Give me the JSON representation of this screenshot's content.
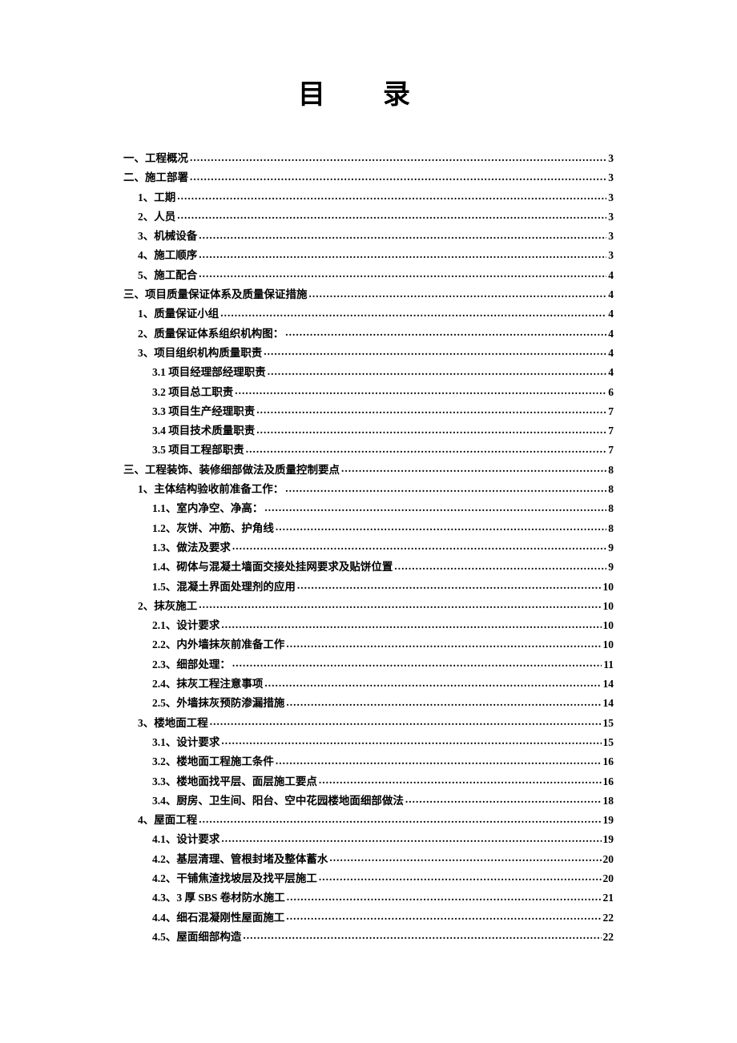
{
  "title": "目录",
  "title_fontsize": 34,
  "body_fontsize": 13.5,
  "text_color": "#000000",
  "background_color": "#ffffff",
  "entries": [
    {
      "indent": 0,
      "label": "一、工程概况",
      "page": "3"
    },
    {
      "indent": 0,
      "label": "二、施工部署",
      "page": "3"
    },
    {
      "indent": 1,
      "label": "1、工期",
      "page": "3"
    },
    {
      "indent": 1,
      "label": "2、人员",
      "page": "3"
    },
    {
      "indent": 1,
      "label": "3、机械设备",
      "page": "3"
    },
    {
      "indent": 1,
      "label": "4、施工顺序",
      "page": "3"
    },
    {
      "indent": 1,
      "label": "5、施工配合",
      "page": "4"
    },
    {
      "indent": 0,
      "label": "三、项目质量保证体系及质量保证措施",
      "page": "4"
    },
    {
      "indent": 1,
      "label": "1、质量保证小组",
      "page": "4"
    },
    {
      "indent": 1,
      "label": "2、质量保证体系组织机构图：",
      "page": "4"
    },
    {
      "indent": 1,
      "label": "3、项目组织机构质量职责",
      "page": "4"
    },
    {
      "indent": 2,
      "label": "3.1 项目经理部经理职责",
      "page": "4"
    },
    {
      "indent": 2,
      "label": "3.2 项目总工职责",
      "page": "6"
    },
    {
      "indent": 2,
      "label": "3.3 项目生产经理职责",
      "page": "7"
    },
    {
      "indent": 2,
      "label": "3.4 项目技术质量职责",
      "page": "7"
    },
    {
      "indent": 2,
      "label": "3.5 项目工程部职责",
      "page": "7"
    },
    {
      "indent": 0,
      "label": "三、工程装饰、装修细部做法及质量控制要点",
      "page": "8"
    },
    {
      "indent": 1,
      "label": "1、主体结构验收前准备工作：",
      "page": "8"
    },
    {
      "indent": 2,
      "label": "1.1、室内净空、净高：",
      "page": "8"
    },
    {
      "indent": 2,
      "label": "1.2、灰饼、冲筋、护角线",
      "page": "8"
    },
    {
      "indent": 2,
      "label": "1.3、做法及要求",
      "page": "9"
    },
    {
      "indent": 2,
      "label": "1.4、砌体与混凝土墙面交接处挂网要求及贴饼位置",
      "page": "9"
    },
    {
      "indent": 2,
      "label": "1.5、混凝土界面处理剂的应用",
      "page": "10"
    },
    {
      "indent": 1,
      "label": "2、抹灰施工",
      "page": "10"
    },
    {
      "indent": 2,
      "label": "2.1、设计要求",
      "page": "10"
    },
    {
      "indent": 2,
      "label": "2.2、内外墙抹灰前准备工作",
      "page": "10"
    },
    {
      "indent": 2,
      "label": "2.3、细部处理：",
      "page": "11"
    },
    {
      "indent": 2,
      "label": "2.4、抹灰工程注意事项",
      "page": "14"
    },
    {
      "indent": 2,
      "label": "2.5、外墙抹灰预防渗漏措施",
      "page": "14"
    },
    {
      "indent": 1,
      "label": "3、楼地面工程",
      "page": "15"
    },
    {
      "indent": 2,
      "label": "3.1、设计要求",
      "page": "15"
    },
    {
      "indent": 2,
      "label": "3.2、楼地面工程施工条件",
      "page": "16"
    },
    {
      "indent": 2,
      "label": "3.3、楼地面找平层、面层施工要点",
      "page": "16"
    },
    {
      "indent": 2,
      "label": "3.4、厨房、卫生间、阳台、空中花园楼地面细部做法",
      "page": "18"
    },
    {
      "indent": 1,
      "label": "4、屋面工程",
      "page": "19"
    },
    {
      "indent": 2,
      "label": "4.1、设计要求",
      "page": "19"
    },
    {
      "indent": 2,
      "label": "4.2、基层清理、管根封堵及整体蓄水",
      "page": "20"
    },
    {
      "indent": 2,
      "label": "4.2、干铺焦渣找坡层及找平层施工",
      "page": "20"
    },
    {
      "indent": 2,
      "label": "4.3、3 厚 SBS 卷材防水施工",
      "page": "21"
    },
    {
      "indent": 2,
      "label": "4.4、细石混凝刚性屋面施工",
      "page": "22"
    },
    {
      "indent": 2,
      "label": "4.5、屋面细部构造",
      "page": "22"
    }
  ]
}
